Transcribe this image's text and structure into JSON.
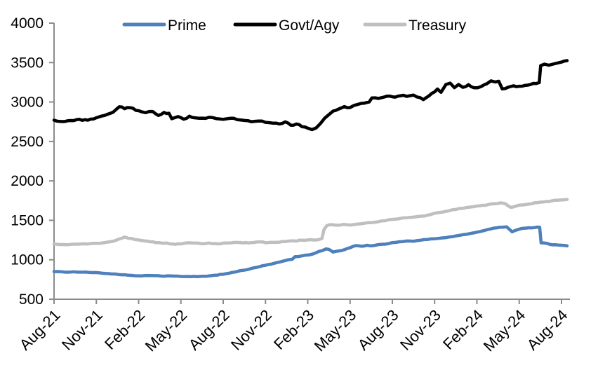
{
  "page": {
    "background": "#FFFFFF"
  },
  "chart_data": {
    "type": "line",
    "title": "",
    "x_axis": {
      "unit": "month",
      "months_per_tick": 3,
      "domain_months": [
        0,
        36.4
      ],
      "tick_labels": [
        "Aug-21",
        "Nov-21",
        "Feb-22",
        "May-22",
        "Aug-22",
        "Nov-22",
        "Feb-23",
        "May-23",
        "Aug-23",
        "Nov-23",
        "Feb-24",
        "May-24",
        "Aug-24"
      ]
    },
    "y_axis": {
      "min": 500,
      "max": 4000,
      "step": 500,
      "ticks": [
        4000,
        3500,
        3000,
        2500,
        2000,
        1500,
        1000,
        500
      ]
    },
    "legend": {
      "position": "top"
    },
    "style": {
      "axis_color": "#8B8B8B",
      "text_color": "#000000",
      "background": "#FFFFFF",
      "line_width": 4.5
    },
    "series": [
      {
        "name": "Prime",
        "color": "#4E80BC",
        "noise": 4,
        "points": [
          [
            0,
            850
          ],
          [
            0.7,
            845
          ],
          [
            1.4,
            848
          ],
          [
            2,
            843
          ],
          [
            2.7,
            838
          ],
          [
            3.4,
            830
          ],
          [
            4.1,
            820
          ],
          [
            4.8,
            810
          ],
          [
            5.5,
            802
          ],
          [
            6.2,
            796
          ],
          [
            6.9,
            799
          ],
          [
            7.6,
            793
          ],
          [
            8.3,
            796
          ],
          [
            9,
            789
          ],
          [
            9.7,
            787
          ],
          [
            10.4,
            790
          ],
          [
            11,
            796
          ],
          [
            11.6,
            806
          ],
          [
            12.2,
            823
          ],
          [
            12.8,
            844
          ],
          [
            13.4,
            866
          ],
          [
            14,
            890
          ],
          [
            14.6,
            914
          ],
          [
            15.2,
            940
          ],
          [
            15.8,
            964
          ],
          [
            16.4,
            990
          ],
          [
            16.9,
            1006
          ],
          [
            17.1,
            1040
          ],
          [
            17.6,
            1050
          ],
          [
            18.1,
            1062
          ],
          [
            18.6,
            1090
          ],
          [
            19,
            1115
          ],
          [
            19.3,
            1138
          ],
          [
            19.5,
            1132
          ],
          [
            19.8,
            1098
          ],
          [
            20.2,
            1112
          ],
          [
            20.6,
            1128
          ],
          [
            21,
            1152
          ],
          [
            21.4,
            1180
          ],
          [
            21.8,
            1172
          ],
          [
            22.2,
            1184
          ],
          [
            22.6,
            1178
          ],
          [
            23,
            1192
          ],
          [
            23.5,
            1198
          ],
          [
            24,
            1218
          ],
          [
            24.5,
            1228
          ],
          [
            25,
            1238
          ],
          [
            25.5,
            1235
          ],
          [
            26,
            1248
          ],
          [
            26.5,
            1258
          ],
          [
            27,
            1266
          ],
          [
            27.5,
            1276
          ],
          [
            28,
            1288
          ],
          [
            28.5,
            1302
          ],
          [
            29,
            1318
          ],
          [
            29.5,
            1332
          ],
          [
            30,
            1350
          ],
          [
            30.5,
            1370
          ],
          [
            31,
            1392
          ],
          [
            31.4,
            1405
          ],
          [
            31.8,
            1412
          ],
          [
            32.1,
            1418
          ],
          [
            32.5,
            1355
          ],
          [
            32.9,
            1382
          ],
          [
            33.3,
            1400
          ],
          [
            33.7,
            1406
          ],
          [
            34.1,
            1409
          ],
          [
            34.45,
            1412
          ],
          [
            34.55,
            1215
          ],
          [
            35,
            1206
          ],
          [
            35.2,
            1194
          ],
          [
            35.6,
            1190
          ],
          [
            36,
            1184
          ],
          [
            36.4,
            1176
          ]
        ]
      },
      {
        "name": "Govt/Agy",
        "color": "#000000",
        "noise": 9,
        "points": [
          [
            0,
            2770
          ],
          [
            0.6,
            2752
          ],
          [
            1.2,
            2765
          ],
          [
            1.8,
            2780
          ],
          [
            2.4,
            2770
          ],
          [
            3,
            2800
          ],
          [
            3.6,
            2830
          ],
          [
            4.2,
            2872
          ],
          [
            4.63,
            2940
          ],
          [
            5,
            2915
          ],
          [
            5.4,
            2928
          ],
          [
            6,
            2890
          ],
          [
            6.5,
            2865
          ],
          [
            7,
            2880
          ],
          [
            7.4,
            2830
          ],
          [
            7.8,
            2868
          ],
          [
            8.15,
            2858
          ],
          [
            8.35,
            2788
          ],
          [
            8.8,
            2815
          ],
          [
            9.2,
            2782
          ],
          [
            9.6,
            2820
          ],
          [
            10,
            2800
          ],
          [
            10.5,
            2795
          ],
          [
            11,
            2806
          ],
          [
            11.5,
            2790
          ],
          [
            12,
            2780
          ],
          [
            12.5,
            2794
          ],
          [
            13,
            2776
          ],
          [
            13.5,
            2766
          ],
          [
            14,
            2750
          ],
          [
            14.5,
            2758
          ],
          [
            15,
            2742
          ],
          [
            15.5,
            2732
          ],
          [
            16,
            2722
          ],
          [
            16.4,
            2748
          ],
          [
            16.8,
            2706
          ],
          [
            17.2,
            2722
          ],
          [
            17.6,
            2686
          ],
          [
            18,
            2668
          ],
          [
            18.3,
            2650
          ],
          [
            18.6,
            2672
          ],
          [
            18.9,
            2728
          ],
          [
            19.2,
            2795
          ],
          [
            19.8,
            2885
          ],
          [
            20.2,
            2912
          ],
          [
            20.6,
            2942
          ],
          [
            21,
            2930
          ],
          [
            21.3,
            2958
          ],
          [
            21.6,
            2972
          ],
          [
            22,
            2985
          ],
          [
            22.35,
            3000
          ],
          [
            22.55,
            3052
          ],
          [
            23,
            3045
          ],
          [
            23.4,
            3062
          ],
          [
            23.8,
            3075
          ],
          [
            24.2,
            3062
          ],
          [
            24.6,
            3080
          ],
          [
            25,
            3072
          ],
          [
            25.5,
            3088
          ],
          [
            26.2,
            3030
          ],
          [
            26.8,
            3110
          ],
          [
            27.2,
            3165
          ],
          [
            27.45,
            3122
          ],
          [
            27.8,
            3222
          ],
          [
            28.1,
            3240
          ],
          [
            28.4,
            3182
          ],
          [
            28.7,
            3222
          ],
          [
            29,
            3186
          ],
          [
            29.4,
            3220
          ],
          [
            29.8,
            3180
          ],
          [
            30.3,
            3196
          ],
          [
            30.7,
            3232
          ],
          [
            31,
            3268
          ],
          [
            31.3,
            3254
          ],
          [
            31.55,
            3264
          ],
          [
            31.8,
            3166
          ],
          [
            32.2,
            3186
          ],
          [
            32.6,
            3206
          ],
          [
            33,
            3200
          ],
          [
            33.4,
            3210
          ],
          [
            33.8,
            3222
          ],
          [
            34.2,
            3234
          ],
          [
            34.42,
            3246
          ],
          [
            34.52,
            3462
          ],
          [
            34.8,
            3480
          ],
          [
            35.1,
            3466
          ],
          [
            35.4,
            3480
          ],
          [
            35.7,
            3494
          ],
          [
            36,
            3506
          ],
          [
            36.4,
            3525
          ]
        ]
      },
      {
        "name": "Treasury",
        "color": "#BFBFBF",
        "noise": 5,
        "points": [
          [
            0,
            1200
          ],
          [
            0.7,
            1193
          ],
          [
            1.4,
            1198
          ],
          [
            2.1,
            1203
          ],
          [
            2.8,
            1208
          ],
          [
            3.5,
            1215
          ],
          [
            4.2,
            1235
          ],
          [
            4.63,
            1265
          ],
          [
            5,
            1288
          ],
          [
            5.3,
            1272
          ],
          [
            5.7,
            1258
          ],
          [
            6.2,
            1245
          ],
          [
            6.8,
            1228
          ],
          [
            7.4,
            1218
          ],
          [
            8,
            1212
          ],
          [
            8.6,
            1196
          ],
          [
            9.2,
            1208
          ],
          [
            9.8,
            1212
          ],
          [
            10.4,
            1205
          ],
          [
            11,
            1212
          ],
          [
            11.6,
            1202
          ],
          [
            12.2,
            1212
          ],
          [
            12.8,
            1220
          ],
          [
            13.4,
            1213
          ],
          [
            14,
            1218
          ],
          [
            14.6,
            1226
          ],
          [
            15.2,
            1218
          ],
          [
            15.8,
            1222
          ],
          [
            16.4,
            1230
          ],
          [
            17,
            1240
          ],
          [
            17.6,
            1248
          ],
          [
            18.2,
            1255
          ],
          [
            18.7,
            1252
          ],
          [
            19,
            1268
          ],
          [
            19.15,
            1382
          ],
          [
            19.35,
            1432
          ],
          [
            19.7,
            1445
          ],
          [
            20.1,
            1438
          ],
          [
            20.5,
            1448
          ],
          [
            21,
            1440
          ],
          [
            21.5,
            1452
          ],
          [
            22,
            1462
          ],
          [
            22.5,
            1470
          ],
          [
            23,
            1482
          ],
          [
            23.5,
            1495
          ],
          [
            24,
            1512
          ],
          [
            24.5,
            1522
          ],
          [
            25,
            1532
          ],
          [
            25.5,
            1540
          ],
          [
            26,
            1552
          ],
          [
            26.5,
            1565
          ],
          [
            27,
            1590
          ],
          [
            27.5,
            1602
          ],
          [
            28,
            1620
          ],
          [
            28.5,
            1638
          ],
          [
            29,
            1652
          ],
          [
            29.5,
            1668
          ],
          [
            30,
            1682
          ],
          [
            30.4,
            1690
          ],
          [
            30.8,
            1700
          ],
          [
            31.2,
            1710
          ],
          [
            31.7,
            1722
          ],
          [
            32,
            1712
          ],
          [
            32.4,
            1665
          ],
          [
            32.8,
            1682
          ],
          [
            33.2,
            1695
          ],
          [
            33.7,
            1706
          ],
          [
            34.1,
            1722
          ],
          [
            34.5,
            1730
          ],
          [
            34.9,
            1738
          ],
          [
            35.3,
            1746
          ],
          [
            35.7,
            1755
          ],
          [
            36.1,
            1760
          ],
          [
            36.4,
            1765
          ]
        ]
      }
    ]
  }
}
